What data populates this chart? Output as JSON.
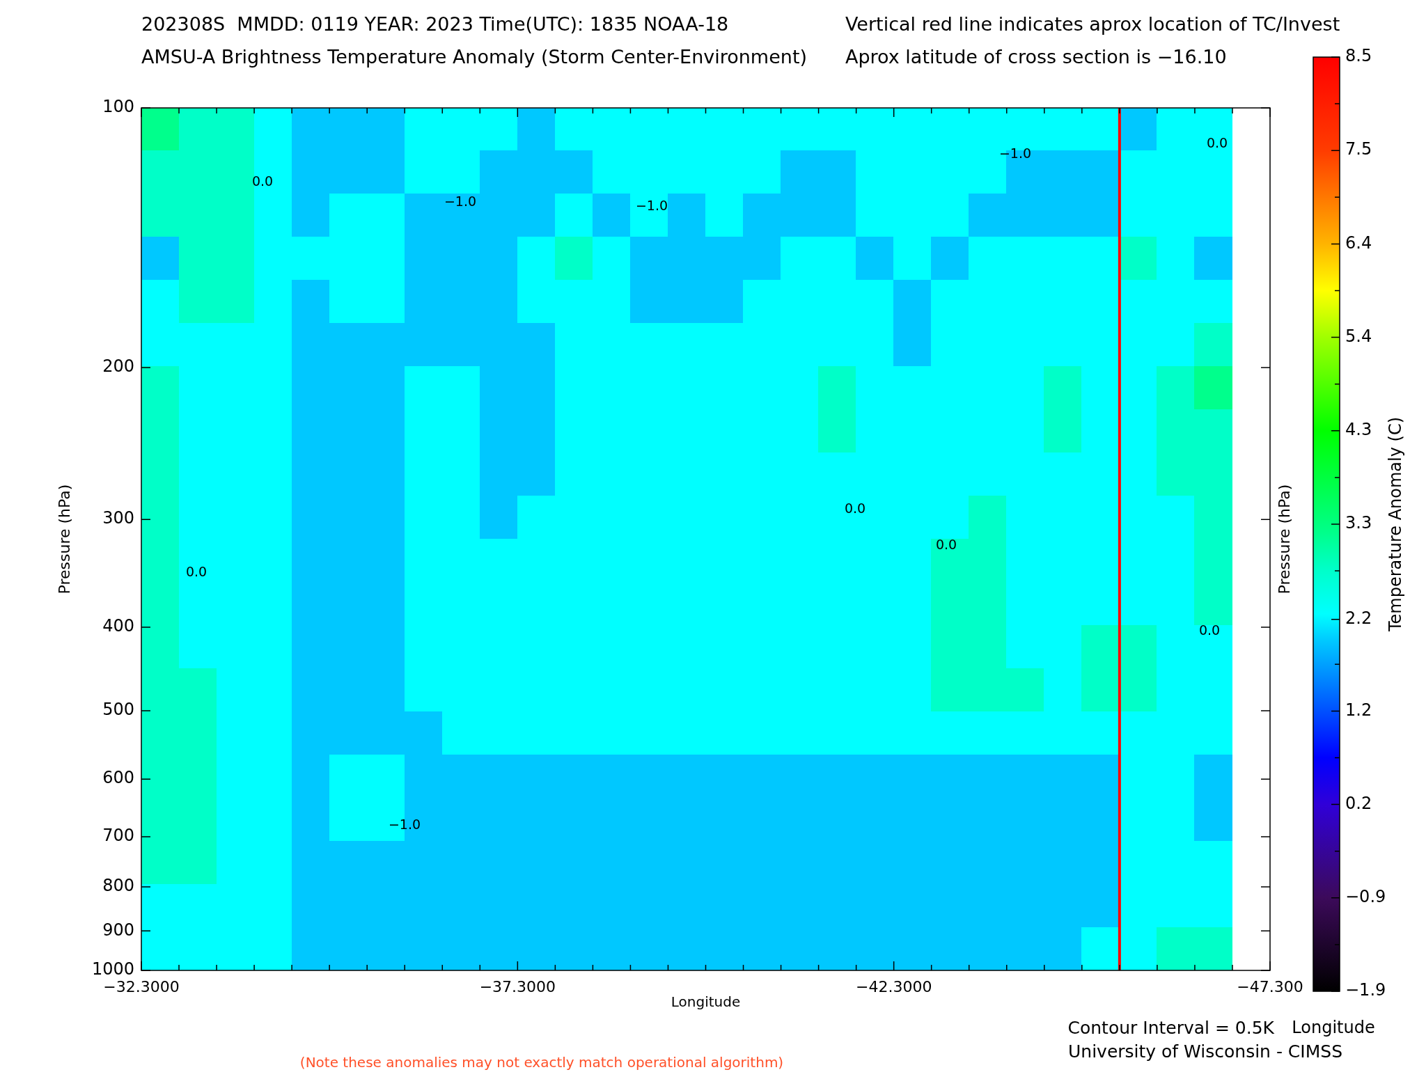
{
  "chart_data": {
    "type": "heatmap",
    "title": "202308S  MMDD: 0119 YEAR: 2023 Time(UTC): 1835 NOAA-18",
    "subtitle": "AMSU-A Brightness Temperature Anomaly (Storm Center-Environment)",
    "xlabel": "Longitude",
    "ylabel": "Pressure (hPa)",
    "y2label": "Pressure (hPa)",
    "clabel": "Temperature Anomaly (C)",
    "x": [
      -32.55,
      -33.05,
      -33.55,
      -34.05,
      -34.55,
      -35.05,
      -35.55,
      -36.05,
      -36.55,
      -37.05,
      -37.55,
      -38.05,
      -38.55,
      -39.05,
      -39.55,
      -40.05,
      -40.55,
      -41.05,
      -41.55,
      -42.05,
      -42.55,
      -43.05,
      -43.55,
      -44.05,
      -44.55,
      -45.05,
      -45.55,
      -46.05,
      -46.55
    ],
    "cells": [
      [
        3.2,
        2.8,
        2.8,
        2.3,
        2.0,
        2.0,
        2.0,
        2.3,
        2.3,
        2.3,
        2.0,
        2.3,
        2.3,
        2.3,
        2.3,
        2.3,
        2.3,
        2.3,
        2.3,
        2.3,
        2.3,
        2.3,
        2.3,
        2.3,
        2.3,
        2.3,
        2.0,
        2.3,
        2.3
      ],
      [
        2.8,
        2.8,
        2.8,
        2.3,
        2.0,
        2.0,
        2.0,
        2.3,
        2.3,
        2.0,
        2.0,
        2.0,
        2.3,
        2.3,
        2.3,
        2.3,
        2.3,
        2.0,
        2.0,
        2.3,
        2.3,
        2.3,
        2.3,
        2.0,
        2.0,
        2.0,
        2.3,
        2.3,
        2.3
      ],
      [
        2.8,
        2.8,
        2.8,
        2.3,
        2.0,
        2.3,
        2.3,
        2.0,
        2.0,
        2.0,
        2.0,
        2.3,
        2.0,
        2.3,
        2.0,
        2.3,
        2.0,
        2.0,
        2.0,
        2.3,
        2.3,
        2.3,
        2.0,
        2.0,
        2.0,
        2.0,
        2.3,
        2.3,
        2.3
      ],
      [
        2.0,
        2.8,
        2.8,
        2.3,
        2.3,
        2.3,
        2.3,
        2.0,
        2.0,
        2.0,
        2.3,
        2.8,
        2.3,
        2.0,
        2.0,
        2.0,
        2.0,
        2.3,
        2.3,
        2.0,
        2.3,
        2.0,
        2.3,
        2.3,
        2.3,
        2.3,
        2.8,
        2.3,
        2.0
      ],
      [
        2.3,
        2.8,
        2.8,
        2.3,
        2.0,
        2.3,
        2.3,
        2.0,
        2.0,
        2.0,
        2.3,
        2.3,
        2.3,
        2.0,
        2.0,
        2.0,
        2.3,
        2.3,
        2.3,
        2.3,
        2.0,
        2.3,
        2.3,
        2.3,
        2.3,
        2.3,
        2.3,
        2.3,
        2.3
      ],
      [
        2.3,
        2.3,
        2.3,
        2.3,
        2.0,
        2.0,
        2.0,
        2.0,
        2.0,
        2.0,
        2.0,
        2.3,
        2.3,
        2.3,
        2.3,
        2.3,
        2.3,
        2.3,
        2.3,
        2.3,
        2.0,
        2.3,
        2.3,
        2.3,
        2.3,
        2.3,
        2.3,
        2.3,
        2.8
      ],
      [
        2.8,
        2.3,
        2.3,
        2.3,
        2.0,
        2.0,
        2.0,
        2.3,
        2.3,
        2.0,
        2.0,
        2.3,
        2.3,
        2.3,
        2.3,
        2.3,
        2.3,
        2.3,
        2.8,
        2.3,
        2.3,
        2.3,
        2.3,
        2.3,
        2.8,
        2.3,
        2.3,
        2.8,
        3.2
      ],
      [
        2.8,
        2.3,
        2.3,
        2.3,
        2.0,
        2.0,
        2.0,
        2.3,
        2.3,
        2.0,
        2.0,
        2.3,
        2.3,
        2.3,
        2.3,
        2.3,
        2.3,
        2.3,
        2.8,
        2.3,
        2.3,
        2.3,
        2.3,
        2.3,
        2.8,
        2.3,
        2.3,
        2.8,
        2.8
      ],
      [
        2.8,
        2.3,
        2.3,
        2.3,
        2.0,
        2.0,
        2.0,
        2.3,
        2.3,
        2.0,
        2.0,
        2.3,
        2.3,
        2.3,
        2.3,
        2.3,
        2.3,
        2.3,
        2.3,
        2.3,
        2.3,
        2.3,
        2.3,
        2.3,
        2.3,
        2.3,
        2.3,
        2.8,
        2.8
      ],
      [
        2.8,
        2.3,
        2.3,
        2.3,
        2.0,
        2.0,
        2.0,
        2.3,
        2.3,
        2.0,
        2.3,
        2.3,
        2.3,
        2.3,
        2.3,
        2.3,
        2.3,
        2.3,
        2.3,
        2.3,
        2.3,
        2.3,
        2.8,
        2.3,
        2.3,
        2.3,
        2.3,
        2.3,
        2.8
      ],
      [
        2.8,
        2.3,
        2.3,
        2.3,
        2.0,
        2.0,
        2.0,
        2.3,
        2.3,
        2.3,
        2.3,
        2.3,
        2.3,
        2.3,
        2.3,
        2.3,
        2.3,
        2.3,
        2.3,
        2.3,
        2.3,
        2.8,
        2.8,
        2.3,
        2.3,
        2.3,
        2.3,
        2.3,
        2.8
      ],
      [
        2.8,
        2.3,
        2.3,
        2.3,
        2.0,
        2.0,
        2.0,
        2.3,
        2.3,
        2.3,
        2.3,
        2.3,
        2.3,
        2.3,
        2.3,
        2.3,
        2.3,
        2.3,
        2.3,
        2.3,
        2.3,
        2.8,
        2.8,
        2.3,
        2.3,
        2.3,
        2.3,
        2.3,
        2.8
      ],
      [
        2.8,
        2.3,
        2.3,
        2.3,
        2.0,
        2.0,
        2.0,
        2.3,
        2.3,
        2.3,
        2.3,
        2.3,
        2.3,
        2.3,
        2.3,
        2.3,
        2.3,
        2.3,
        2.3,
        2.3,
        2.3,
        2.8,
        2.8,
        2.3,
        2.3,
        2.8,
        2.8,
        2.3,
        2.3
      ],
      [
        2.8,
        2.8,
        2.3,
        2.3,
        2.0,
        2.0,
        2.0,
        2.3,
        2.3,
        2.3,
        2.3,
        2.3,
        2.3,
        2.3,
        2.3,
        2.3,
        2.3,
        2.3,
        2.3,
        2.3,
        2.3,
        2.8,
        2.8,
        2.8,
        2.3,
        2.8,
        2.8,
        2.3,
        2.3
      ],
      [
        2.8,
        2.8,
        2.3,
        2.3,
        2.0,
        2.0,
        2.0,
        2.0,
        2.3,
        2.3,
        2.3,
        2.3,
        2.3,
        2.3,
        2.3,
        2.3,
        2.3,
        2.3,
        2.3,
        2.3,
        2.3,
        2.3,
        2.3,
        2.3,
        2.3,
        2.3,
        2.3,
        2.3,
        2.3
      ],
      [
        2.8,
        2.8,
        2.3,
        2.3,
        2.0,
        2.3,
        2.3,
        2.0,
        2.0,
        2.0,
        2.0,
        2.0,
        2.0,
        2.0,
        2.0,
        2.0,
        2.0,
        2.0,
        2.0,
        2.0,
        2.0,
        2.0,
        2.0,
        2.0,
        2.0,
        2.0,
        2.3,
        2.3,
        2.0
      ],
      [
        2.8,
        2.8,
        2.3,
        2.3,
        2.0,
        2.3,
        2.3,
        2.0,
        2.0,
        2.0,
        2.0,
        2.0,
        2.0,
        2.0,
        2.0,
        2.0,
        2.0,
        2.0,
        2.0,
        2.0,
        2.0,
        2.0,
        2.0,
        2.0,
        2.0,
        2.0,
        2.3,
        2.3,
        2.0
      ],
      [
        2.8,
        2.8,
        2.3,
        2.3,
        2.0,
        2.0,
        2.0,
        2.0,
        2.0,
        2.0,
        2.0,
        2.0,
        2.0,
        2.0,
        2.0,
        2.0,
        2.0,
        2.0,
        2.0,
        2.0,
        2.0,
        2.0,
        2.0,
        2.0,
        2.0,
        2.0,
        2.3,
        2.3,
        2.3
      ],
      [
        2.3,
        2.3,
        2.3,
        2.3,
        2.0,
        2.0,
        2.0,
        2.0,
        2.0,
        2.0,
        2.0,
        2.0,
        2.0,
        2.0,
        2.0,
        2.0,
        2.0,
        2.0,
        2.0,
        2.0,
        2.0,
        2.0,
        2.0,
        2.0,
        2.0,
        2.0,
        2.3,
        2.3,
        2.3
      ],
      [
        2.3,
        2.3,
        2.3,
        2.3,
        2.0,
        2.0,
        2.0,
        2.0,
        2.0,
        2.0,
        2.0,
        2.0,
        2.0,
        2.0,
        2.0,
        2.0,
        2.0,
        2.0,
        2.0,
        2.0,
        2.0,
        2.0,
        2.0,
        2.0,
        2.0,
        2.3,
        2.3,
        2.8,
        2.8
      ]
    ],
    "xlim": [
      -32.3,
      -47.3
    ],
    "xticks": [
      {
        "value": -32.3,
        "label": "−32.3000"
      },
      {
        "value": -32.8,
        "label": null
      },
      {
        "value": -33.3,
        "label": null
      },
      {
        "value": -33.8,
        "label": null
      },
      {
        "value": -34.3,
        "label": null
      },
      {
        "value": -34.8,
        "label": null
      },
      {
        "value": -35.3,
        "label": null
      },
      {
        "value": -35.8,
        "label": null
      },
      {
        "value": -36.3,
        "label": null
      },
      {
        "value": -36.8,
        "label": null
      },
      {
        "value": -37.3,
        "label": "−37.3000"
      },
      {
        "value": -37.8,
        "label": null
      },
      {
        "value": -38.3,
        "label": null
      },
      {
        "value": -38.8,
        "label": null
      },
      {
        "value": -39.3,
        "label": null
      },
      {
        "value": -39.8,
        "label": null
      },
      {
        "value": -40.3,
        "label": null
      },
      {
        "value": -40.8,
        "label": null
      },
      {
        "value": -41.3,
        "label": null
      },
      {
        "value": -41.8,
        "label": null
      },
      {
        "value": -42.3,
        "label": "−42.3000"
      },
      {
        "value": -42.8,
        "label": null
      },
      {
        "value": -43.3,
        "label": null
      },
      {
        "value": -43.8,
        "label": null
      },
      {
        "value": -44.3,
        "label": null
      },
      {
        "value": -44.8,
        "label": null
      },
      {
        "value": -45.3,
        "label": null
      },
      {
        "value": -45.8,
        "label": null
      },
      {
        "value": -46.3,
        "label": null
      },
      {
        "value": -46.8,
        "label": null
      },
      {
        "value": -47.3,
        "label": "−47.300"
      }
    ],
    "ylim": [
      1000,
      100
    ],
    "yticks": [
      100,
      200,
      300,
      400,
      500,
      600,
      700,
      800,
      900,
      1000
    ],
    "log": "y",
    "clim": [
      -1.9,
      8.5
    ],
    "cticks": [
      {
        "value": -1.9,
        "label": "−1.9"
      },
      {
        "value": -1.38,
        "label": null
      },
      {
        "value": -0.86,
        "label": "−0.9"
      },
      {
        "value": -0.34,
        "label": null
      },
      {
        "value": 0.18,
        "label": "0.2"
      },
      {
        "value": 0.7,
        "label": null
      },
      {
        "value": 1.22,
        "label": "1.2"
      },
      {
        "value": 1.74,
        "label": null
      },
      {
        "value": 2.24,
        "label": "2.2"
      },
      {
        "value": 2.78,
        "label": null
      },
      {
        "value": 3.3,
        "label": "3.3"
      },
      {
        "value": 3.82,
        "label": null
      },
      {
        "value": 4.34,
        "label": "4.3"
      },
      {
        "value": 4.86,
        "label": null
      },
      {
        "value": 5.38,
        "label": "5.4"
      },
      {
        "value": 5.9,
        "label": null
      },
      {
        "value": 6.42,
        "label": "6.4"
      },
      {
        "value": 6.94,
        "label": null
      },
      {
        "value": 7.46,
        "label": "7.5"
      },
      {
        "value": 7.98,
        "label": null
      },
      {
        "value": 8.5,
        "label": "8.5"
      }
    ],
    "ref_lines": [
      {
        "axis": "x",
        "value": -45.3,
        "color": "#ff0000"
      }
    ],
    "annotations": [
      "Vertical red line indicates aprox location of TC/Invest",
      "Aprox latitude of cross section is −16.10",
      "Contour Interval = 0.5K",
      "Longitude",
      "University of Wisconsin - CIMSS",
      "(Note these anomalies may not exactly match operational algorithm)",
      "0.0",
      "−1.0",
      "−1.0",
      "−1.0",
      "0.0",
      "0.0",
      "−1.0",
      "0.0",
      "0.0",
      "0.0"
    ]
  }
}
